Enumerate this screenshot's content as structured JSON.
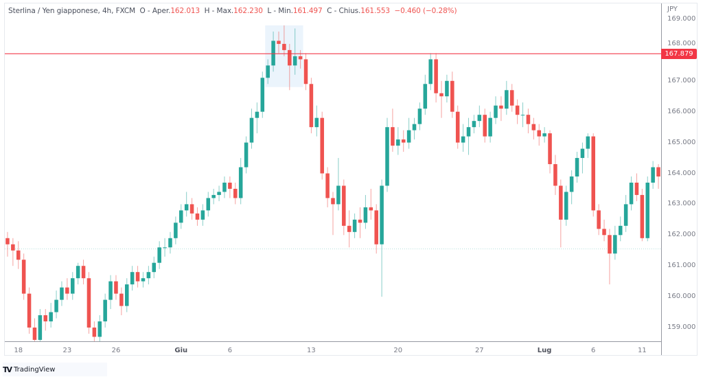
{
  "legend": {
    "symbol": "Sterlina / Yen giapponese, 4h, FXCM",
    "open_label": "O - Aper.",
    "open": "162.013",
    "high_label": "H - Max.",
    "high": "162.230",
    "low_label": "L - Min.",
    "low": "161.497",
    "close_label": "C - Chius.",
    "close": "161.553",
    "change": "−0.460 (−0.28%)"
  },
  "colors": {
    "up": "#26a69a",
    "down": "#ef5350",
    "price_line": "#f23645",
    "highlight": "#e3f0fb"
  },
  "price_axis": {
    "currency": "JPY",
    "last_price": "167.879"
  },
  "branding": {
    "name": "TradingView"
  },
  "chart_data": {
    "type": "candlestick",
    "title": "Sterlina / Yen giapponese, 4h, FXCM",
    "ylim": [
      158.4,
      169.3
    ],
    "y_ticks": [
      "169.000",
      "168.000",
      "167.000",
      "166.000",
      "165.000",
      "164.000",
      "163.000",
      "162.000",
      "161.000",
      "160.000",
      "159.000"
    ],
    "x_ticks": [
      {
        "label": "18",
        "candle": 2,
        "bold": false
      },
      {
        "label": "23",
        "candle": 11,
        "bold": false
      },
      {
        "label": "26",
        "candle": 20,
        "bold": false
      },
      {
        "label": "Giu",
        "candle": 32,
        "bold": true
      },
      {
        "label": "6",
        "candle": 41,
        "bold": false
      },
      {
        "label": "13",
        "candle": 56,
        "bold": false
      },
      {
        "label": "20",
        "candle": 72,
        "bold": false
      },
      {
        "label": "27",
        "candle": 87,
        "bold": false
      },
      {
        "label": "Lug",
        "candle": 99,
        "bold": true
      },
      {
        "label": "6",
        "candle": 108,
        "bold": false
      },
      {
        "label": "11",
        "candle": 117,
        "bold": false
      }
    ],
    "horizontal_line": 167.879,
    "crosshair_price": 161.553,
    "ohlc": [
      [
        161.9,
        162.1,
        161.3,
        161.7
      ],
      [
        161.7,
        161.9,
        161.0,
        161.5
      ],
      [
        161.5,
        161.8,
        160.9,
        161.2
      ],
      [
        161.2,
        161.4,
        159.9,
        160.1
      ],
      [
        160.1,
        160.3,
        158.8,
        159.0
      ],
      [
        159.0,
        159.3,
        158.4,
        158.6
      ],
      [
        158.6,
        159.6,
        158.4,
        159.4
      ],
      [
        159.4,
        159.6,
        158.9,
        159.2
      ],
      [
        159.2,
        159.8,
        159.0,
        159.5
      ],
      [
        159.5,
        160.2,
        159.3,
        159.9
      ],
      [
        159.9,
        160.5,
        159.7,
        160.3
      ],
      [
        160.3,
        160.6,
        159.9,
        160.1
      ],
      [
        160.1,
        160.8,
        159.9,
        160.6
      ],
      [
        160.6,
        161.1,
        160.4,
        161.0
      ],
      [
        161.0,
        161.2,
        160.4,
        160.6
      ],
      [
        160.6,
        160.8,
        158.8,
        159.0
      ],
      [
        159.0,
        159.2,
        158.5,
        158.7
      ],
      [
        158.7,
        159.4,
        158.5,
        159.2
      ],
      [
        159.2,
        160.1,
        159.0,
        159.9
      ],
      [
        159.9,
        160.7,
        159.6,
        160.5
      ],
      [
        160.5,
        160.7,
        159.9,
        160.1
      ],
      [
        160.1,
        160.3,
        159.4,
        159.7
      ],
      [
        159.7,
        160.6,
        159.5,
        160.4
      ],
      [
        160.4,
        161.0,
        160.2,
        160.8
      ],
      [
        160.8,
        161.0,
        160.3,
        160.5
      ],
      [
        160.5,
        160.8,
        160.3,
        160.6
      ],
      [
        160.6,
        161.0,
        160.4,
        160.8
      ],
      [
        160.8,
        161.3,
        160.6,
        161.1
      ],
      [
        161.1,
        161.8,
        160.9,
        161.6
      ],
      [
        161.6,
        161.9,
        161.3,
        161.6
      ],
      [
        161.6,
        162.1,
        161.4,
        161.9
      ],
      [
        161.9,
        162.6,
        161.7,
        162.4
      ],
      [
        162.4,
        163.0,
        162.2,
        162.8
      ],
      [
        162.8,
        163.4,
        162.6,
        163.0
      ],
      [
        163.0,
        163.2,
        162.5,
        162.7
      ],
      [
        162.7,
        162.9,
        162.3,
        162.5
      ],
      [
        162.5,
        163.0,
        162.3,
        162.8
      ],
      [
        162.8,
        163.4,
        162.6,
        163.2
      ],
      [
        163.2,
        163.5,
        163.0,
        163.3
      ],
      [
        163.3,
        163.6,
        163.1,
        163.4
      ],
      [
        163.4,
        163.9,
        163.2,
        163.7
      ],
      [
        163.7,
        163.9,
        163.2,
        163.5
      ],
      [
        163.5,
        163.7,
        163.0,
        163.2
      ],
      [
        163.2,
        164.5,
        163.0,
        164.2
      ],
      [
        164.2,
        165.2,
        164.0,
        165.0
      ],
      [
        165.0,
        166.1,
        164.8,
        165.8
      ],
      [
        165.8,
        166.3,
        165.3,
        166.0
      ],
      [
        166.0,
        167.3,
        165.8,
        167.1
      ],
      [
        167.1,
        167.7,
        166.9,
        167.5
      ],
      [
        167.5,
        168.6,
        167.3,
        168.3
      ],
      [
        168.3,
        168.6,
        167.9,
        168.2
      ],
      [
        168.2,
        168.8,
        167.8,
        168.0
      ],
      [
        168.0,
        168.2,
        166.7,
        167.5
      ],
      [
        167.5,
        168.7,
        167.2,
        167.8
      ],
      [
        167.8,
        168.0,
        167.4,
        167.7
      ],
      [
        167.7,
        167.9,
        166.7,
        166.9
      ],
      [
        166.9,
        167.1,
        165.3,
        165.5
      ],
      [
        165.5,
        166.2,
        165.2,
        165.8
      ],
      [
        165.8,
        166.0,
        163.8,
        164.0
      ],
      [
        164.0,
        164.2,
        162.9,
        163.2
      ],
      [
        163.2,
        163.4,
        162.0,
        163.0
      ],
      [
        163.0,
        164.5,
        162.8,
        163.6
      ],
      [
        163.6,
        163.8,
        162.0,
        162.3
      ],
      [
        162.3,
        162.8,
        161.6,
        162.1
      ],
      [
        162.1,
        162.7,
        161.9,
        162.5
      ],
      [
        162.5,
        162.9,
        161.9,
        162.4
      ],
      [
        162.4,
        163.3,
        162.2,
        162.9
      ],
      [
        162.9,
        163.5,
        162.5,
        162.8
      ],
      [
        162.8,
        163.0,
        161.4,
        161.7
      ],
      [
        161.7,
        163.8,
        160.0,
        163.6
      ],
      [
        163.6,
        165.8,
        163.4,
        165.5
      ],
      [
        165.5,
        166.1,
        164.7,
        164.9
      ],
      [
        164.9,
        165.5,
        164.6,
        165.1
      ],
      [
        165.1,
        165.4,
        164.7,
        165.0
      ],
      [
        165.0,
        165.8,
        164.8,
        165.4
      ],
      [
        165.4,
        165.8,
        165.1,
        165.6
      ],
      [
        165.6,
        166.3,
        165.4,
        166.1
      ],
      [
        166.1,
        167.2,
        165.9,
        166.9
      ],
      [
        166.9,
        167.9,
        166.7,
        167.7
      ],
      [
        167.7,
        167.9,
        166.3,
        166.6
      ],
      [
        166.6,
        167.0,
        165.8,
        166.5
      ],
      [
        166.5,
        167.2,
        166.3,
        167.0
      ],
      [
        167.0,
        167.3,
        165.8,
        166.0
      ],
      [
        166.0,
        166.2,
        164.8,
        165.0
      ],
      [
        165.0,
        165.6,
        164.7,
        165.2
      ],
      [
        165.2,
        165.8,
        164.6,
        165.5
      ],
      [
        165.5,
        165.9,
        165.3,
        165.7
      ],
      [
        165.7,
        166.2,
        165.5,
        165.9
      ],
      [
        165.9,
        166.1,
        165.0,
        165.2
      ],
      [
        165.2,
        166.0,
        165.0,
        165.8
      ],
      [
        165.8,
        166.5,
        165.6,
        166.2
      ],
      [
        166.2,
        166.5,
        165.7,
        166.1
      ],
      [
        166.1,
        167.0,
        165.9,
        166.7
      ],
      [
        166.7,
        166.9,
        166.0,
        166.2
      ],
      [
        166.2,
        166.4,
        165.6,
        165.9
      ],
      [
        165.9,
        166.3,
        165.5,
        165.9
      ],
      [
        165.9,
        166.1,
        165.3,
        165.6
      ],
      [
        165.6,
        165.8,
        165.1,
        165.4
      ],
      [
        165.4,
        165.6,
        164.9,
        165.2
      ],
      [
        165.2,
        165.5,
        165.0,
        165.3
      ],
      [
        165.3,
        165.4,
        164.0,
        164.3
      ],
      [
        164.3,
        164.6,
        163.3,
        163.6
      ],
      [
        163.6,
        163.8,
        161.6,
        162.5
      ],
      [
        162.5,
        163.6,
        162.3,
        163.4
      ],
      [
        163.4,
        164.1,
        163.0,
        163.9
      ],
      [
        163.9,
        164.7,
        163.7,
        164.5
      ],
      [
        164.5,
        165.0,
        164.0,
        164.8
      ],
      [
        164.8,
        165.3,
        164.5,
        165.2
      ],
      [
        165.2,
        165.3,
        162.6,
        162.8
      ],
      [
        162.8,
        163.0,
        162.0,
        162.2
      ],
      [
        162.2,
        162.5,
        161.8,
        162.0
      ],
      [
        162.0,
        162.2,
        160.4,
        161.4
      ],
      [
        161.4,
        162.3,
        161.2,
        162.0
      ],
      [
        162.0,
        162.6,
        161.8,
        162.3
      ],
      [
        162.3,
        163.3,
        162.1,
        163.0
      ],
      [
        163.0,
        163.9,
        162.8,
        163.7
      ],
      [
        163.7,
        164.0,
        163.1,
        163.3
      ],
      [
        163.3,
        163.5,
        161.8,
        161.9
      ],
      [
        161.9,
        163.9,
        161.8,
        163.7
      ],
      [
        163.7,
        164.4,
        163.5,
        164.2
      ],
      [
        164.2,
        164.3,
        163.5,
        163.9
      ]
    ],
    "highlight_range": {
      "from_candle": 48,
      "to_candle": 54,
      "high": 168.8,
      "low": 166.8
    }
  }
}
